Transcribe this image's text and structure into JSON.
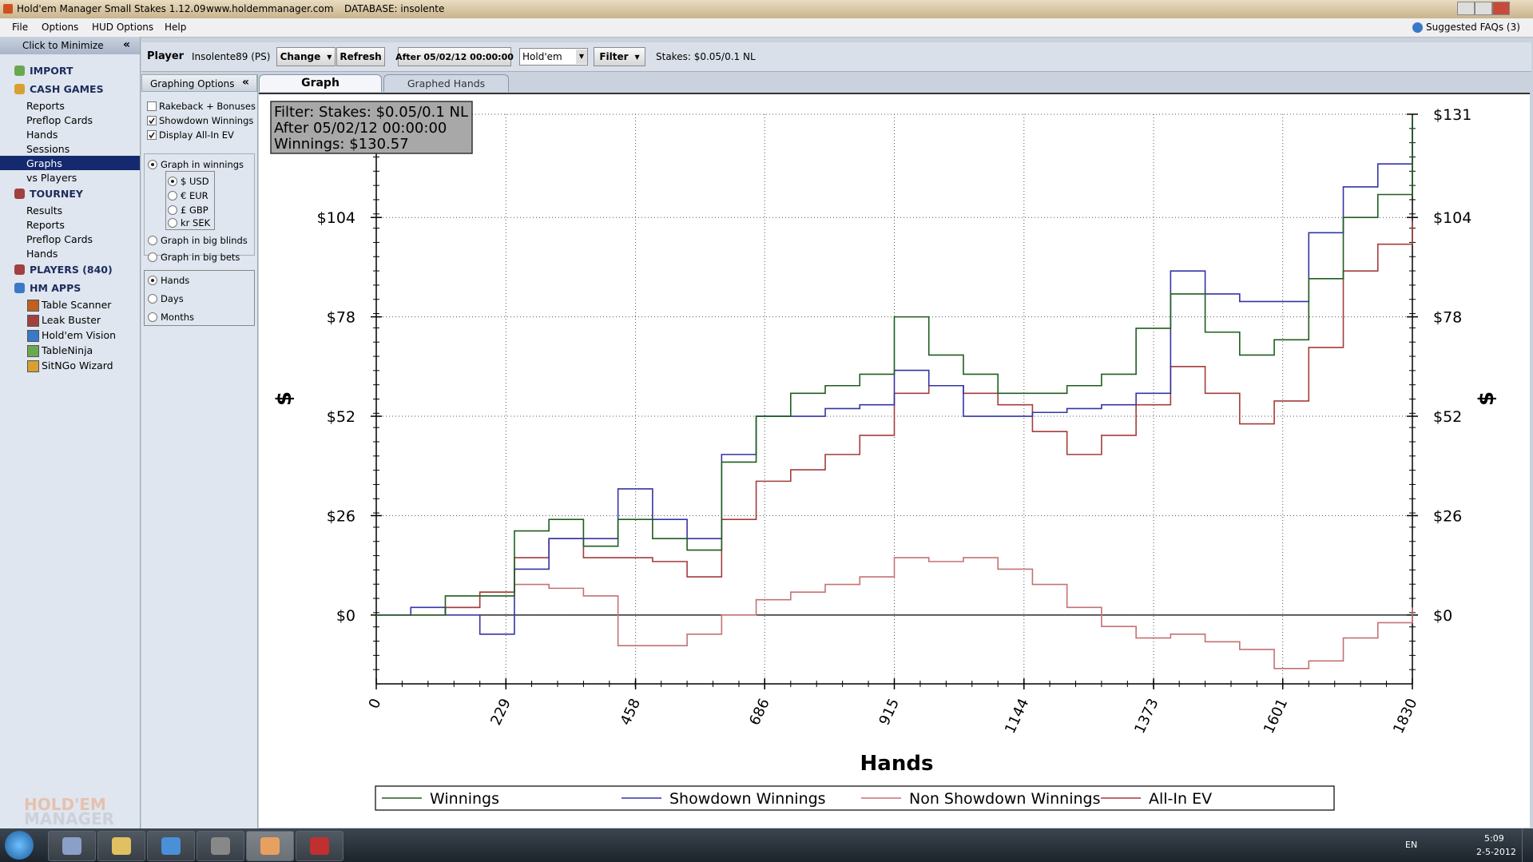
{
  "window": {
    "title": "Hold'em Manager Small Stakes 1.12.09",
    "url": "www.holdemmanager.com",
    "database": "DATABASE: insolente"
  },
  "menu": [
    "File",
    "Options",
    "HUD Options",
    "Help"
  ],
  "faq": "Suggested FAQs (3)",
  "sidebar": {
    "minimize": "Click to Minimize",
    "items": [
      {
        "label": "IMPORT",
        "level": 0
      },
      {
        "label": "CASH GAMES",
        "level": 0
      },
      {
        "label": "Reports",
        "level": 1
      },
      {
        "label": "Preflop Cards",
        "level": 1
      },
      {
        "label": "Hands",
        "level": 1
      },
      {
        "label": "Sessions",
        "level": 1
      },
      {
        "label": "Graphs",
        "level": 1,
        "selected": true
      },
      {
        "label": "vs Players",
        "level": 1
      },
      {
        "label": "TOURNEY",
        "level": 0
      },
      {
        "label": "Results",
        "level": 1
      },
      {
        "label": "Reports",
        "level": 1
      },
      {
        "label": "Preflop Cards",
        "level": 1
      },
      {
        "label": "Hands",
        "level": 1
      },
      {
        "label": "PLAYERS (840)",
        "level": 0
      },
      {
        "label": "HM APPS",
        "level": 0
      },
      {
        "label": "Table Scanner",
        "level": 2
      },
      {
        "label": "Leak Buster",
        "level": 2
      },
      {
        "label": "Hold'em Vision",
        "level": 2
      },
      {
        "label": "TableNinja",
        "level": 2
      },
      {
        "label": "SitNGo Wizard",
        "level": 2
      }
    ]
  },
  "toolbar": {
    "player_label": "Player",
    "player": "Insolente89 (PS)",
    "change": "Change",
    "refresh": "Refresh",
    "date": "After 05/02/12 00:00:00",
    "game": "Hold'em",
    "filter": "Filter",
    "stakes": "Stakes: $0.05/0.1 NL"
  },
  "options": {
    "title": "Graphing Options",
    "checks": [
      {
        "label": "Rakeback + Bonuses",
        "checked": false
      },
      {
        "label": "Showdown Winnings",
        "checked": true
      },
      {
        "label": "Display All-In EV",
        "checked": true
      }
    ],
    "units": [
      {
        "label": "Graph in winnings",
        "selected": true
      },
      {
        "label": "$ USD",
        "selected": true
      },
      {
        "label": "€ EUR",
        "selected": false
      },
      {
        "label": "£ GBP",
        "selected": false
      },
      {
        "label": "kr SEK",
        "selected": false
      },
      {
        "label": "Graph in big blinds",
        "selected": false
      },
      {
        "label": "Graph in big bets",
        "selected": false
      }
    ],
    "x_axis": [
      {
        "label": "Hands",
        "selected": true
      },
      {
        "label": "Days",
        "selected": false
      },
      {
        "label": "Months",
        "selected": false
      }
    ]
  },
  "tabs": [
    "Graph",
    "Graphed Hands"
  ],
  "chart_data": {
    "type": "line",
    "info_box": [
      "Filter: Stakes: $0.05/0.1 NL",
      "After 05/02/12 00:00:00",
      "Winnings: $130.57"
    ],
    "xlabel": "Hands",
    "ylabel": "$",
    "x": [
      0,
      61,
      122,
      183,
      244,
      305,
      366,
      427,
      488,
      549,
      610,
      671,
      732,
      793,
      854,
      915,
      976,
      1037,
      1098,
      1159,
      1220,
      1281,
      1342,
      1403,
      1464,
      1525,
      1586,
      1647,
      1708,
      1769,
      1830
    ],
    "series": [
      {
        "name": "Winnings",
        "color": "#1e5e1e",
        "values": [
          0,
          0,
          5,
          5,
          22,
          25,
          18,
          25,
          20,
          17,
          40,
          52,
          58,
          60,
          63,
          78,
          68,
          63,
          58,
          58,
          60,
          63,
          75,
          84,
          74,
          68,
          72,
          88,
          104,
          110,
          130.57
        ]
      },
      {
        "name": "Showdown Winnings",
        "color": "#3434a4",
        "values": [
          0,
          2,
          0,
          -5,
          12,
          20,
          20,
          33,
          25,
          20,
          42,
          52,
          52,
          54,
          55,
          64,
          60,
          52,
          52,
          53,
          54,
          55,
          58,
          90,
          84,
          82,
          82,
          100,
          112,
          118,
          130
        ]
      },
      {
        "name": "Non Showdown Winnings",
        "color": "#c47272",
        "values": [
          0,
          0,
          2,
          6,
          8,
          7,
          5,
          -8,
          -8,
          -5,
          0,
          4,
          6,
          8,
          10,
          15,
          14,
          15,
          12,
          8,
          2,
          -3,
          -6,
          -5,
          -7,
          -9,
          -14,
          -12,
          -6,
          -2,
          2
        ]
      },
      {
        "name": "All-In EV",
        "color": "#a43c3c",
        "values": [
          0,
          0,
          2,
          6,
          15,
          20,
          15,
          15,
          14,
          10,
          25,
          35,
          38,
          42,
          47,
          58,
          60,
          58,
          55,
          48,
          42,
          47,
          55,
          65,
          58,
          50,
          56,
          70,
          90,
          97,
          103
        ]
      }
    ],
    "xlim": [
      0,
      1830
    ],
    "xticks": [
      0,
      229,
      458,
      686,
      915,
      1144,
      1373,
      1601,
      1830
    ],
    "ylim": [
      -18,
      131
    ],
    "yticks": [
      {
        "value": 0,
        "label": "$0"
      },
      {
        "value": 26,
        "label": "$26"
      },
      {
        "value": 52,
        "label": "$52"
      },
      {
        "value": 78,
        "label": "$78"
      },
      {
        "value": 104,
        "label": "$104"
      },
      {
        "value": 131,
        "label": "$131"
      }
    ],
    "grid": true
  },
  "logo": [
    "HOLD'EM",
    "MANAGER"
  ],
  "taskbar": {
    "lang": "EN",
    "time": "5:09",
    "date": "2-5-2012"
  }
}
